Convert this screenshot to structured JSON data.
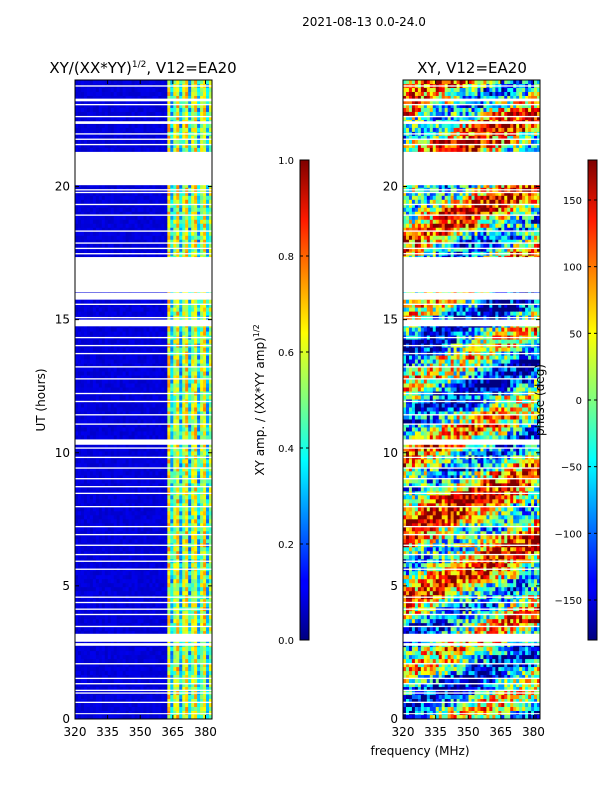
{
  "suptitle": "2021-08-13 0.0-24.0",
  "xlabel": "frequency (MHz)",
  "colors": {
    "background": "#ffffff",
    "gap": "#ffffff",
    "axes": "#000000"
  },
  "chart_data": [
    {
      "type": "heatmap",
      "title_main": "XY/(XX*YY)",
      "title_sup": "1/2",
      "title_tail": ", V12=EA20",
      "xlabel": "",
      "ylabel": "UT (hours)",
      "xlim": [
        320,
        383
      ],
      "ylim": [
        0,
        24
      ],
      "xticks": [
        320,
        335,
        350,
        365,
        380
      ],
      "yticks": [
        0,
        5,
        10,
        15,
        20
      ],
      "colormap": "jet",
      "colorbar": {
        "label_main": "XY amp. / (XX*YY amp)",
        "label_sup": "1/2",
        "range": [
          0.0,
          1.0
        ],
        "ticks": [
          "0.0",
          "0.2",
          "0.4",
          "0.6",
          "0.8",
          "1.0"
        ]
      },
      "typical_values": {
        "below_360MHz": 0.08,
        "above_360MHz": "0.3-0.8 (striped)"
      }
    },
    {
      "type": "heatmap",
      "title_main": "XY, V12=EA20",
      "title_sup": "",
      "title_tail": "",
      "xlabel": "frequency (MHz)",
      "ylabel": "",
      "xlim": [
        320,
        383
      ],
      "ylim": [
        0,
        24
      ],
      "xticks": [
        320,
        335,
        350,
        365,
        380
      ],
      "yticks": [
        0,
        5,
        10,
        15,
        20
      ],
      "colormap": "jet",
      "colorbar": {
        "label_main": "phase (deg)",
        "label_sup": "",
        "range": [
          -180,
          180
        ],
        "ticks": [
          "−150",
          "−100",
          "−50",
          "0",
          "50",
          "100",
          "150"
        ]
      },
      "typical_values": {
        "phase_deg": "-180 to 180 (noisy)"
      }
    }
  ],
  "gaps_hours": [
    [
      0.18,
      0.22
    ],
    [
      0.6,
      0.65
    ],
    [
      0.95,
      1.0
    ],
    [
      1.05,
      1.1
    ],
    [
      1.3,
      1.35
    ],
    [
      1.5,
      1.55
    ],
    [
      2.05,
      2.1
    ],
    [
      2.75,
      2.85
    ],
    [
      2.9,
      3.2
    ],
    [
      3.45,
      3.5
    ],
    [
      3.9,
      3.95
    ],
    [
      4.1,
      4.15
    ],
    [
      4.35,
      4.4
    ],
    [
      4.55,
      4.6
    ],
    [
      5.6,
      5.65
    ],
    [
      5.9,
      5.95
    ],
    [
      6.15,
      6.2
    ],
    [
      6.5,
      6.55
    ],
    [
      6.9,
      6.95
    ],
    [
      7.2,
      7.25
    ],
    [
      7.95,
      8.0
    ],
    [
      8.45,
      8.5
    ],
    [
      8.7,
      8.75
    ],
    [
      9.0,
      9.05
    ],
    [
      9.4,
      9.45
    ],
    [
      9.8,
      9.85
    ],
    [
      10.15,
      10.2
    ],
    [
      10.3,
      10.5
    ],
    [
      11.05,
      11.1
    ],
    [
      11.4,
      11.45
    ],
    [
      11.9,
      11.95
    ],
    [
      12.2,
      12.25
    ],
    [
      12.75,
      12.8
    ],
    [
      13.2,
      13.25
    ],
    [
      13.7,
      13.75
    ],
    [
      14.0,
      14.05
    ],
    [
      14.3,
      14.35
    ],
    [
      14.75,
      15.0
    ],
    [
      15.05,
      15.1
    ],
    [
      15.55,
      15.6
    ],
    [
      15.75,
      16.0
    ],
    [
      16.02,
      17.35
    ],
    [
      17.45,
      17.5
    ],
    [
      17.65,
      17.7
    ],
    [
      17.85,
      17.9
    ],
    [
      18.3,
      18.35
    ],
    [
      18.9,
      18.95
    ],
    [
      19.3,
      19.35
    ],
    [
      19.75,
      19.8
    ],
    [
      19.85,
      19.9
    ],
    [
      20.05,
      21.3
    ],
    [
      21.55,
      21.6
    ],
    [
      21.75,
      21.8
    ],
    [
      21.95,
      22.0
    ],
    [
      22.35,
      22.45
    ],
    [
      22.6,
      22.65
    ],
    [
      23.05,
      23.1
    ],
    [
      23.2,
      23.3
    ],
    [
      23.75,
      23.8
    ]
  ]
}
